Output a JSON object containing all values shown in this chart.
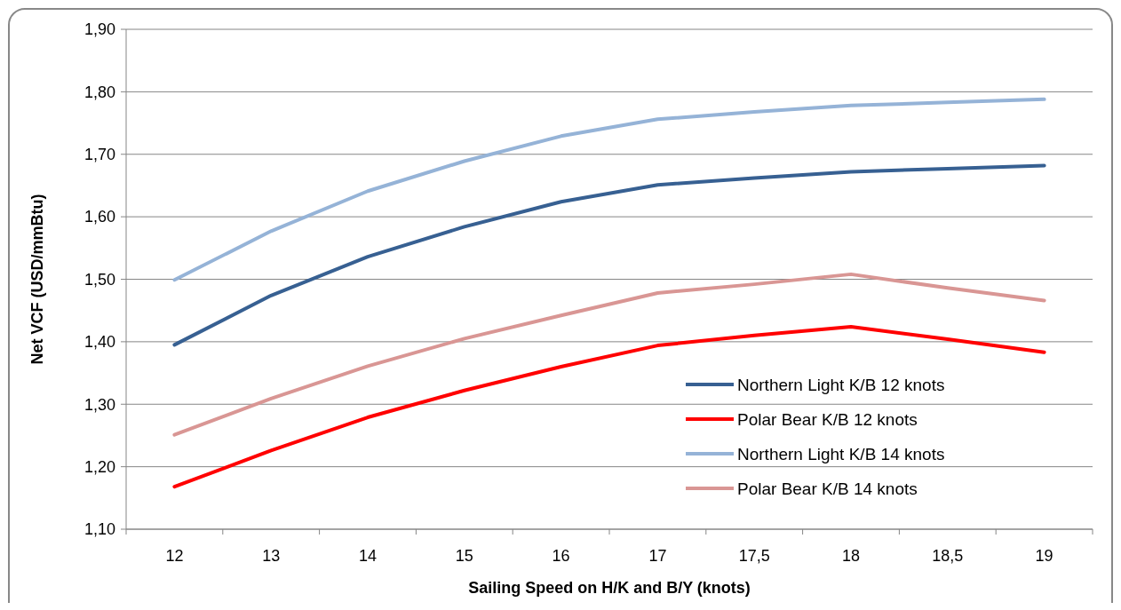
{
  "chart_data": {
    "type": "line",
    "xlabel": "Sailing Speed on H/K and B/Y (knots)",
    "ylabel": "Net VCF (USD/mmBtu)",
    "categories": [
      "12",
      "13",
      "14",
      "15",
      "16",
      "17",
      "17,5",
      "18",
      "18,5",
      "19"
    ],
    "series": [
      {
        "name": "Northern Light K/B 12 knots",
        "color": "#376092",
        "values": [
          1.395,
          1.474,
          1.536,
          1.584,
          1.624,
          1.651,
          1.662,
          1.672,
          1.677,
          1.682
        ]
      },
      {
        "name": "Polar Bear K/B 12 knots",
        "color": "#ff0000",
        "values": [
          1.168,
          1.226,
          1.279,
          1.322,
          1.36,
          1.394,
          1.41,
          1.424,
          1.404,
          1.383
        ]
      },
      {
        "name": "Northern Light K/B 14 knots",
        "color": "#95b3d7",
        "values": [
          1.499,
          1.577,
          1.641,
          1.689,
          1.729,
          1.756,
          1.768,
          1.778,
          1.783,
          1.788
        ]
      },
      {
        "name": "Polar Bear K/B 14 knots",
        "color": "#d99694",
        "values": [
          1.251,
          1.309,
          1.361,
          1.405,
          1.442,
          1.478,
          1.492,
          1.508,
          1.486,
          1.466
        ]
      }
    ],
    "ylim": [
      1.1,
      1.9
    ],
    "yticks": [
      {
        "value": 1.1,
        "label": "1,10"
      },
      {
        "value": 1.2,
        "label": "1,20"
      },
      {
        "value": 1.3,
        "label": "1,30"
      },
      {
        "value": 1.4,
        "label": "1,40"
      },
      {
        "value": 1.5,
        "label": "1,50"
      },
      {
        "value": 1.6,
        "label": "1,60"
      },
      {
        "value": 1.7,
        "label": "1,70"
      },
      {
        "value": 1.8,
        "label": "1,80"
      },
      {
        "value": 1.9,
        "label": "1,90"
      }
    ],
    "grid": "y",
    "legend": "bottom right",
    "line_style": "solid"
  }
}
